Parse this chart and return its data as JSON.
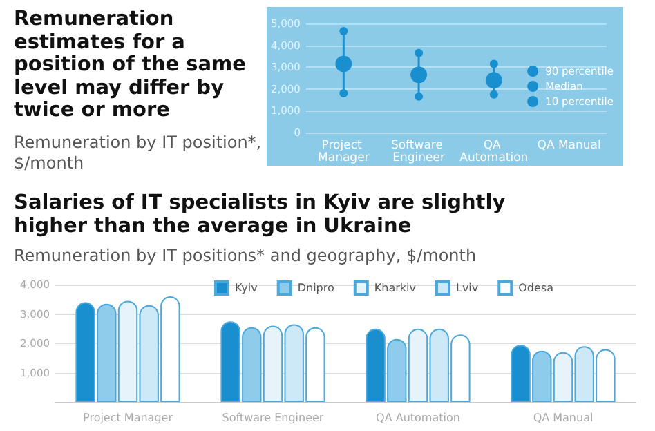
{
  "chart_data": [
    {
      "type": "scatter",
      "title": "Remuneration estimates for a position of the same level may differ by twice or more",
      "subtitle": "Remuneration by IT position*, $/month",
      "categories": [
        "Project Manager",
        "Software Engineer",
        "QA Automation",
        "QA Manual"
      ],
      "series": [
        {
          "name": "90 percentile",
          "color": "#1a8fd0",
          "values": [
            4650,
            3650,
            3150,
            null
          ]
        },
        {
          "name": "Median",
          "color": "#1a8fd0",
          "values": [
            3150,
            2650,
            2400,
            null
          ]
        },
        {
          "name": "10 percentile",
          "color": "#1a8fd0",
          "values": [
            1800,
            1650,
            1750,
            null
          ]
        }
      ],
      "ylim": [
        0,
        5000
      ],
      "yticks": [
        {
          "value": 0,
          "label": "0"
        },
        {
          "value": 1000,
          "label": "1,000"
        },
        {
          "value": 2000,
          "label": "2,000"
        },
        {
          "value": 3000,
          "label": "3,000"
        },
        {
          "value": 4000,
          "label": "4,000"
        },
        {
          "value": 5000,
          "label": "5,000"
        }
      ],
      "grid": "y",
      "legend": "right",
      "marker": "circle"
    },
    {
      "type": "bar",
      "title": "Salaries of IT specialists in Kyiv are slightly higher than the average in Ukraine",
      "subtitle": "Remuneration by IT positions* and geography, $/month",
      "categories": [
        "Project Manager",
        "Software Engineer",
        "QA Automation",
        "QA Manual"
      ],
      "series": [
        {
          "name": "Kyiv",
          "color": "#1a8fd0",
          "values": [
            3400,
            2750,
            2500,
            1950
          ]
        },
        {
          "name": "Dnipro",
          "color": "#8fcbea",
          "values": [
            3350,
            2550,
            2150,
            1750
          ]
        },
        {
          "name": "Kharkiv",
          "color": "#e6f3fb",
          "values": [
            3450,
            2600,
            2500,
            1700
          ]
        },
        {
          "name": "Lviv",
          "color": "#cde8f6",
          "values": [
            3300,
            2650,
            2500,
            1900
          ]
        },
        {
          "name": "Odesa",
          "color": "#ffffff",
          "values": [
            3600,
            2550,
            2300,
            1800
          ]
        }
      ],
      "ylim": [
        0,
        4000
      ],
      "yticks": [
        {
          "value": 0,
          "label": null
        },
        {
          "value": 1000,
          "label": "1,000"
        },
        {
          "value": 2000,
          "label": "2,000"
        },
        {
          "value": 3000,
          "label": "3,000"
        },
        {
          "value": 4000,
          "label": "4,000"
        }
      ],
      "grid": "y",
      "legend": "top"
    }
  ]
}
